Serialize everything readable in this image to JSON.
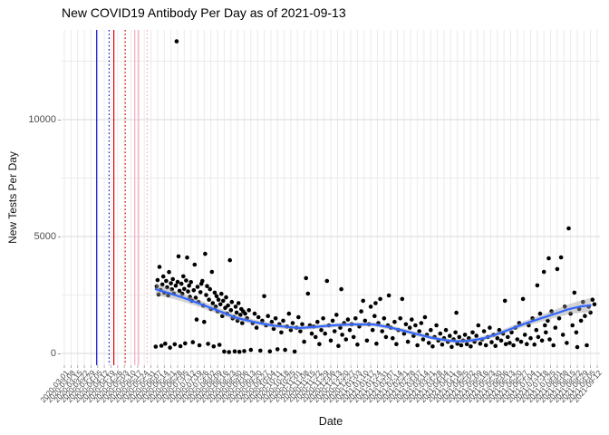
{
  "chart_data": {
    "type": "scatter",
    "title": "New COVID19 Antibody Per Day as of 2021-09-13",
    "xlabel": "Date",
    "ylabel": "New Tests Per Day",
    "x_axis": {
      "start_date": "2020-03-01",
      "end_date": "2021-09-12",
      "tick_interval_days": 7,
      "tick_labels": [
        "2020-03-01",
        "2020-03-08",
        "2020-03-15",
        "2020-03-22",
        "2020-03-29",
        "2020-04-05",
        "2020-04-12",
        "2020-04-19",
        "2020-04-26",
        "2020-05-03",
        "2020-05-10",
        "2020-05-17",
        "2020-05-24",
        "2020-05-31",
        "2020-06-07",
        "2020-06-14",
        "2020-06-21",
        "2020-06-28",
        "2020-07-05",
        "2020-07-12",
        "2020-07-19",
        "2020-07-26",
        "2020-08-02",
        "2020-08-09",
        "2020-08-16",
        "2020-08-23",
        "2020-08-30",
        "2020-09-06",
        "2020-09-13",
        "2020-09-20",
        "2020-09-27",
        "2020-10-04",
        "2020-10-11",
        "2020-10-18",
        "2020-10-25",
        "2020-11-01",
        "2020-11-08",
        "2020-11-15",
        "2020-11-22",
        "2020-11-29",
        "2020-12-06",
        "2020-12-13",
        "2020-12-20",
        "2020-12-27",
        "2021-01-03",
        "2021-01-10",
        "2021-01-17",
        "2021-01-24",
        "2021-01-31",
        "2021-02-07",
        "2021-02-14",
        "2021-02-21",
        "2021-02-28",
        "2021-03-07",
        "2021-03-14",
        "2021-03-21",
        "2021-03-28",
        "2021-04-04",
        "2021-04-11",
        "2021-04-18",
        "2021-04-25",
        "2021-05-02",
        "2021-05-09",
        "2021-05-16",
        "2021-05-23",
        "2021-05-30",
        "2021-06-06",
        "2021-06-13",
        "2021-06-20",
        "2021-06-27",
        "2021-07-04",
        "2021-07-11",
        "2021-07-18",
        "2021-07-25",
        "2021-08-01",
        "2021-08-08",
        "2021-08-15",
        "2021-08-22",
        "2021-08-29",
        "2021-09-05",
        "2021-09-12"
      ]
    },
    "y_axis": {
      "ticks": [
        0,
        5000,
        10000
      ],
      "tick_labels": [
        "0",
        "5000",
        "10000"
      ],
      "minor_ticks": [
        2500,
        7500,
        12500
      ],
      "lim": [
        -500,
        13850
      ]
    },
    "grid": true,
    "legend": "none",
    "event_lines": [
      {
        "day": 34,
        "color": "#1414CC",
        "style": "solid"
      },
      {
        "day": 47,
        "color": "#1414CC",
        "style": "dotted"
      },
      {
        "day": 52,
        "color": "#E00000",
        "style": "solid"
      },
      {
        "day": 64,
        "color": "#E00000",
        "style": "dotted"
      },
      {
        "day": 74,
        "color": "#F5A9BC",
        "style": "solid"
      },
      {
        "day": 78,
        "color": "#F5A9BC",
        "style": "solid"
      },
      {
        "day": 87,
        "color": "#F5A9BC",
        "style": "dotted"
      }
    ],
    "smooth": {
      "method": "loess",
      "color": "#3366FF",
      "points": [
        [
          96,
          2750,
          260
        ],
        [
          110,
          2580,
          200
        ],
        [
          125,
          2380,
          170
        ],
        [
          140,
          2160,
          150
        ],
        [
          155,
          1930,
          140
        ],
        [
          170,
          1700,
          130
        ],
        [
          178,
          1560,
          120
        ],
        [
          190,
          1430,
          110
        ],
        [
          205,
          1300,
          100
        ],
        [
          220,
          1190,
          95
        ],
        [
          235,
          1130,
          90
        ],
        [
          247,
          1090,
          90
        ],
        [
          260,
          1120,
          90
        ],
        [
          275,
          1180,
          90
        ],
        [
          290,
          1220,
          90
        ],
        [
          305,
          1240,
          90
        ],
        [
          325,
          1240,
          90
        ],
        [
          340,
          1130,
          90
        ],
        [
          355,
          990,
          90
        ],
        [
          370,
          830,
          90
        ],
        [
          385,
          680,
          85
        ],
        [
          400,
          570,
          85
        ],
        [
          412,
          520,
          85
        ],
        [
          425,
          540,
          90
        ],
        [
          440,
          640,
          95
        ],
        [
          455,
          830,
          100
        ],
        [
          470,
          1060,
          110
        ],
        [
          485,
          1290,
          120
        ],
        [
          500,
          1490,
          140
        ],
        [
          515,
          1690,
          170
        ],
        [
          530,
          1890,
          210
        ],
        [
          543,
          2010,
          260
        ],
        [
          553,
          2060,
          310
        ]
      ]
    },
    "points": [
      [
        96,
        290
      ],
      [
        97,
        2870
      ],
      [
        98,
        3140
      ],
      [
        99,
        2520
      ],
      [
        100,
        3700
      ],
      [
        101,
        2713
      ],
      [
        102,
        330
      ],
      [
        103,
        2950
      ],
      [
        104,
        3290
      ],
      [
        105,
        2600
      ],
      [
        106,
        420
      ],
      [
        107,
        3100
      ],
      [
        108,
        2830
      ],
      [
        109,
        2480
      ],
      [
        110,
        3480
      ],
      [
        111,
        250
      ],
      [
        112,
        3000
      ],
      [
        113,
        2740
      ],
      [
        114,
        3180
      ],
      [
        115,
        2560
      ],
      [
        116,
        390
      ],
      [
        117,
        2900
      ],
      [
        118,
        13350
      ],
      [
        119,
        3060
      ],
      [
        120,
        4150
      ],
      [
        121,
        2680
      ],
      [
        122,
        310
      ],
      [
        123,
        2980
      ],
      [
        124,
        2550
      ],
      [
        125,
        3300
      ],
      [
        126,
        2760
      ],
      [
        127,
        430
      ],
      [
        128,
        3120
      ],
      [
        129,
        4100
      ],
      [
        130,
        2650
      ],
      [
        131,
        2900
      ],
      [
        132,
        2420
      ],
      [
        133,
        3050
      ],
      [
        134,
        2250
      ],
      [
        135,
        480
      ],
      [
        136,
        2700
      ],
      [
        137,
        3800
      ],
      [
        138,
        2380
      ],
      [
        139,
        1450
      ],
      [
        140,
        2850
      ],
      [
        141,
        2200
      ],
      [
        142,
        350
      ],
      [
        143,
        2620
      ],
      [
        144,
        2980
      ],
      [
        145,
        3100
      ],
      [
        146,
        2050
      ],
      [
        147,
        1350
      ],
      [
        148,
        4260
      ],
      [
        149,
        2500
      ],
      [
        150,
        2880
      ],
      [
        151,
        410
      ],
      [
        152,
        2300
      ],
      [
        153,
        2750
      ],
      [
        154,
        1900
      ],
      [
        155,
        3490
      ],
      [
        156,
        2150
      ],
      [
        157,
        300
      ],
      [
        158,
        2600
      ],
      [
        159,
        2000
      ],
      [
        160,
        2450
      ],
      [
        161,
        1800
      ],
      [
        162,
        2300
      ],
      [
        163,
        370
      ],
      [
        164,
        2100
      ],
      [
        165,
        2550
      ],
      [
        166,
        1600
      ],
      [
        167,
        2250
      ],
      [
        168,
        80
      ],
      [
        169,
        1950
      ],
      [
        170,
        2400
      ],
      [
        171,
        1700
      ],
      [
        172,
        2050
      ],
      [
        173,
        60
      ],
      [
        174,
        3990
      ],
      [
        175,
        1850
      ],
      [
        176,
        2200
      ],
      [
        177,
        1500
      ],
      [
        178,
        1560
      ],
      [
        179,
        90
      ],
      [
        180,
        2000
      ],
      [
        181,
        1750
      ],
      [
        182,
        1400
      ],
      [
        183,
        2150
      ],
      [
        184,
        70
      ],
      [
        185,
        1650
      ],
      [
        186,
        1900
      ],
      [
        187,
        1300
      ],
      [
        188,
        1800
      ],
      [
        189,
        100
      ],
      [
        190,
        1700
      ],
      [
        192,
        1500
      ],
      [
        194,
        1850
      ],
      [
        196,
        150
      ],
      [
        198,
        1300
      ],
      [
        200,
        1700
      ],
      [
        202,
        1100
      ],
      [
        204,
        1550
      ],
      [
        206,
        120
      ],
      [
        208,
        1400
      ],
      [
        210,
        2450
      ],
      [
        212,
        1200
      ],
      [
        214,
        1600
      ],
      [
        216,
        90
      ],
      [
        218,
        1350
      ],
      [
        220,
        1050
      ],
      [
        222,
        1500
      ],
      [
        224,
        180
      ],
      [
        226,
        1250
      ],
      [
        228,
        900
      ],
      [
        230,
        1400
      ],
      [
        232,
        150
      ],
      [
        234,
        1150
      ],
      [
        236,
        1700
      ],
      [
        238,
        1000
      ],
      [
        240,
        1300
      ],
      [
        242,
        80
      ],
      [
        244,
        1100
      ],
      [
        246,
        1550
      ],
      [
        248,
        950
      ],
      [
        250,
        1250
      ],
      [
        252,
        500
      ],
      [
        254,
        3220
      ],
      [
        256,
        2560
      ],
      [
        258,
        1200
      ],
      [
        260,
        850
      ],
      [
        262,
        1150
      ],
      [
        264,
        700
      ],
      [
        266,
        1350
      ],
      [
        268,
        400
      ],
      [
        270,
        1000
      ],
      [
        272,
        1500
      ],
      [
        274,
        850
      ],
      [
        276,
        3100
      ],
      [
        278,
        1200
      ],
      [
        280,
        550
      ],
      [
        282,
        1400
      ],
      [
        284,
        950
      ],
      [
        286,
        1650
      ],
      [
        288,
        320
      ],
      [
        290,
        1100
      ],
      [
        291,
        2750
      ],
      [
        292,
        800
      ],
      [
        294,
        1300
      ],
      [
        296,
        600
      ],
      [
        298,
        1450
      ],
      [
        300,
        1000
      ],
      [
        302,
        1250
      ],
      [
        304,
        700
      ],
      [
        306,
        1500
      ],
      [
        308,
        380
      ],
      [
        310,
        1150
      ],
      [
        312,
        1800
      ],
      [
        314,
        2250
      ],
      [
        316,
        1400
      ],
      [
        318,
        550
      ],
      [
        320,
        1250
      ],
      [
        322,
        2000
      ],
      [
        324,
        1000
      ],
      [
        326,
        1600
      ],
      [
        327,
        2150
      ],
      [
        328,
        420
      ],
      [
        330,
        1300
      ],
      [
        332,
        2330
      ],
      [
        334,
        950
      ],
      [
        336,
        1500
      ],
      [
        338,
        700
      ],
      [
        340,
        1200
      ],
      [
        341,
        2480
      ],
      [
        343,
        1100
      ],
      [
        345,
        650
      ],
      [
        347,
        1350
      ],
      [
        349,
        400
      ],
      [
        351,
        1000
      ],
      [
        353,
        1500
      ],
      [
        355,
        2330
      ],
      [
        357,
        850
      ],
      [
        359,
        1250
      ],
      [
        361,
        500
      ],
      [
        363,
        1100
      ],
      [
        365,
        1450
      ],
      [
        367,
        750
      ],
      [
        369,
        1200
      ],
      [
        371,
        350
      ],
      [
        373,
        950
      ],
      [
        375,
        1300
      ],
      [
        377,
        600
      ],
      [
        379,
        1550
      ],
      [
        381,
        800
      ],
      [
        383,
        450
      ],
      [
        385,
        1000
      ],
      [
        387,
        300
      ],
      [
        389,
        700
      ],
      [
        391,
        1200
      ],
      [
        393,
        550
      ],
      [
        395,
        850
      ],
      [
        397,
        380
      ],
      [
        399,
        650
      ],
      [
        401,
        1000
      ],
      [
        403,
        500
      ],
      [
        405,
        750
      ],
      [
        407,
        280
      ],
      [
        409,
        600
      ],
      [
        411,
        900
      ],
      [
        412,
        1740
      ],
      [
        413,
        420
      ],
      [
        415,
        700
      ],
      [
        417,
        350
      ],
      [
        419,
        550
      ],
      [
        421,
        800
      ],
      [
        423,
        400
      ],
      [
        425,
        650
      ],
      [
        427,
        300
      ],
      [
        429,
        900
      ],
      [
        431,
        500
      ],
      [
        433,
        750
      ],
      [
        435,
        1200
      ],
      [
        437,
        420
      ],
      [
        439,
        600
      ],
      [
        441,
        950
      ],
      [
        443,
        350
      ],
      [
        445,
        700
      ],
      [
        447,
        1100
      ],
      [
        449,
        480
      ],
      [
        451,
        800
      ],
      [
        453,
        320
      ],
      [
        455,
        650
      ],
      [
        457,
        1000
      ],
      [
        459,
        550
      ],
      [
        461,
        850
      ],
      [
        463,
        2250
      ],
      [
        464,
        400
      ],
      [
        466,
        700
      ],
      [
        468,
        450
      ],
      [
        470,
        900
      ],
      [
        472,
        350
      ],
      [
        474,
        1100
      ],
      [
        476,
        600
      ],
      [
        478,
        1300
      ],
      [
        480,
        500
      ],
      [
        482,
        2330
      ],
      [
        484,
        800
      ],
      [
        486,
        400
      ],
      [
        488,
        1200
      ],
      [
        490,
        650
      ],
      [
        492,
        1500
      ],
      [
        494,
        380
      ],
      [
        496,
        1000
      ],
      [
        497,
        2910
      ],
      [
        498,
        700
      ],
      [
        500,
        1700
      ],
      [
        502,
        550
      ],
      [
        504,
        3490
      ],
      [
        505,
        1200
      ],
      [
        506,
        900
      ],
      [
        508,
        1400
      ],
      [
        509,
        4070
      ],
      [
        510,
        600
      ],
      [
        512,
        1800
      ],
      [
        514,
        350
      ],
      [
        516,
        1100
      ],
      [
        518,
        3610
      ],
      [
        520,
        1500
      ],
      [
        522,
        4110
      ],
      [
        524,
        800
      ],
      [
        526,
        2000
      ],
      [
        528,
        450
      ],
      [
        530,
        5350
      ],
      [
        532,
        1700
      ],
      [
        534,
        1200
      ],
      [
        536,
        2600
      ],
      [
        538,
        900
      ],
      [
        539,
        270
      ],
      [
        541,
        1900
      ],
      [
        543,
        1400
      ],
      [
        545,
        2200
      ],
      [
        547,
        1600
      ],
      [
        549,
        350
      ],
      [
        551,
        2000
      ],
      [
        553,
        1750
      ],
      [
        555,
        2300
      ],
      [
        557,
        2100
      ]
    ],
    "colors": {
      "point": "#000000",
      "smooth_line": "#3366FF",
      "ribbon": "rgba(160,160,160,0.45)",
      "grid_major": "#E0E0E0",
      "grid_minor": "#EBEBEB",
      "axis_text": "#4D4D4D",
      "title_text": "#000000",
      "background": "#FFFFFF"
    }
  }
}
